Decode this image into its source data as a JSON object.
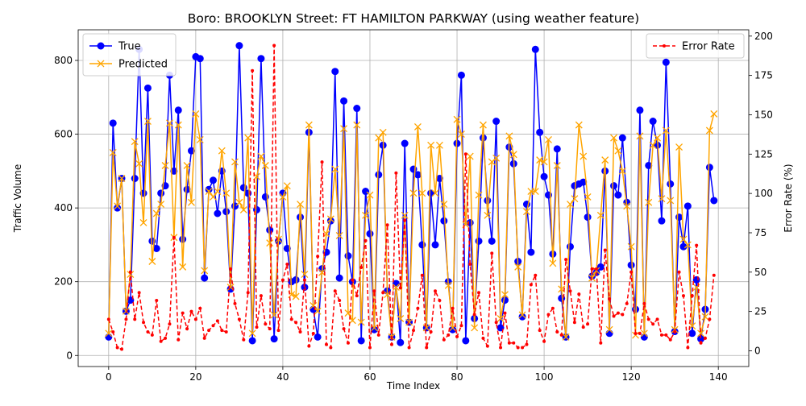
{
  "chart_data": {
    "type": "line",
    "title": "Boro: BROOKLYN Street: FT HAMILTON PARKWAY (using weather feature)",
    "xlabel": "Time Index",
    "ylabel": "Traffic Volume",
    "y2label": "Error Rate (%)",
    "xlim": [
      -7,
      147
    ],
    "ylim": [
      -30,
      883
    ],
    "y2lim": [
      -10,
      204
    ],
    "xticks": [
      0,
      20,
      40,
      60,
      80,
      100,
      120,
      140
    ],
    "yticks": [
      0,
      200,
      400,
      600,
      800
    ],
    "y2ticks": [
      0,
      25,
      50,
      75,
      100,
      125,
      150,
      175,
      200
    ],
    "grid": true,
    "legend_left_position": "upper-left",
    "legend_right_position": "upper-right",
    "colors": {
      "true": "#0000ff",
      "predicted": "#ffa500",
      "error": "#ff0000",
      "grid": "#b0b0b0"
    },
    "series": [
      {
        "name": "True",
        "axis": "left",
        "marker": "circle",
        "style": "solid",
        "values": [
          50,
          630,
          400,
          480,
          120,
          150,
          480,
          830,
          440,
          725,
          310,
          290,
          440,
          460,
          760,
          500,
          665,
          315,
          450,
          555,
          810,
          805,
          210,
          450,
          475,
          385,
          500,
          390,
          180,
          405,
          840,
          455,
          440,
          40,
          395,
          805,
          430,
          340,
          45,
          310,
          440,
          290,
          200,
          205,
          375,
          185,
          605,
          125,
          50,
          235,
          280,
          365,
          770,
          210,
          690,
          270,
          200,
          670,
          40,
          445,
          330,
          70,
          490,
          570,
          175,
          50,
          195,
          35,
          575,
          90,
          505,
          490,
          300,
          75,
          440,
          300,
          480,
          365,
          200,
          70,
          575,
          760,
          40,
          360,
          100,
          310,
          590,
          420,
          310,
          635,
          75,
          150,
          565,
          520,
          255,
          105,
          410,
          280,
          830,
          605,
          485,
          435,
          275,
          560,
          155,
          50,
          295,
          460,
          465,
          470,
          375,
          215,
          225,
          240,
          500,
          60,
          460,
          435,
          590,
          415,
          245,
          125,
          665,
          50,
          515,
          635,
          570,
          365,
          795,
          465,
          65,
          375,
          295,
          405,
          60,
          205,
          45,
          125,
          510,
          420
        ]
      },
      {
        "name": "Predicted",
        "axis": "left",
        "marker": "x",
        "style": "solid",
        "values": [
          60,
          550,
          405,
          480,
          120,
          220,
          580,
          520,
          360,
          635,
          255,
          385,
          410,
          515,
          630,
          320,
          625,
          240,
          515,
          415,
          655,
          585,
          230,
          445,
          430,
          445,
          555,
          440,
          185,
          525,
          415,
          395,
          590,
          60,
          485,
          540,
          515,
          305,
          110,
          315,
          430,
          460,
          165,
          160,
          410,
          220,
          625,
          135,
          120,
          225,
          330,
          370,
          505,
          325,
          615,
          115,
          95,
          625,
          90,
          380,
          435,
          75,
          590,
          605,
          165,
          50,
          185,
          100,
          380,
          90,
          440,
          620,
          440,
          75,
          570,
          440,
          570,
          410,
          190,
          75,
          640,
          600,
          355,
          540,
          75,
          435,
          625,
          380,
          525,
          535,
          100,
          165,
          595,
          545,
          240,
          110,
          390,
          445,
          445,
          530,
          525,
          585,
          250,
          515,
          180,
          50,
          410,
          425,
          625,
          540,
          430,
          210,
          230,
          380,
          530,
          70,
          590,
          555,
          500,
          405,
          295,
          55,
          595,
          60,
          415,
          570,
          590,
          425,
          610,
          420,
          70,
          565,
          315,
          300,
          80,
          185,
          60,
          105,
          610,
          655
        ]
      },
      {
        "name": "Error Rate",
        "axis": "right",
        "marker": "dot",
        "style": "dashed",
        "values": [
          20,
          12,
          2,
          1,
          20,
          50,
          20,
          37,
          18,
          12,
          10,
          32,
          6,
          8,
          17,
          72,
          7,
          24,
          14,
          25,
          20,
          27,
          8,
          13,
          16,
          19,
          13,
          12,
          52,
          30,
          20,
          7,
          37,
          178,
          15,
          35,
          17,
          14,
          194,
          13,
          45,
          55,
          20,
          18,
          12,
          45,
          3,
          11,
          60,
          120,
          4,
          2,
          38,
          32,
          14,
          5,
          45,
          35,
          53,
          70,
          2,
          38,
          10,
          37,
          80,
          4,
          113,
          40,
          83,
          2,
          13,
          27,
          48,
          2,
          12,
          38,
          32,
          7,
          10,
          27,
          9,
          16,
          125,
          55,
          23,
          37,
          8,
          3,
          62,
          18,
          2,
          24,
          5,
          5,
          2,
          2,
          4,
          42,
          48,
          13,
          6,
          23,
          27,
          12,
          10,
          58,
          38,
          18,
          36,
          15,
          17,
          52,
          52,
          5,
          64,
          33,
          22,
          24,
          23,
          30,
          50,
          11,
          11,
          30,
          20,
          17,
          20,
          10,
          10,
          7,
          12,
          50,
          35,
          2,
          35,
          67,
          5,
          8,
          20,
          48
        ]
      }
    ]
  }
}
